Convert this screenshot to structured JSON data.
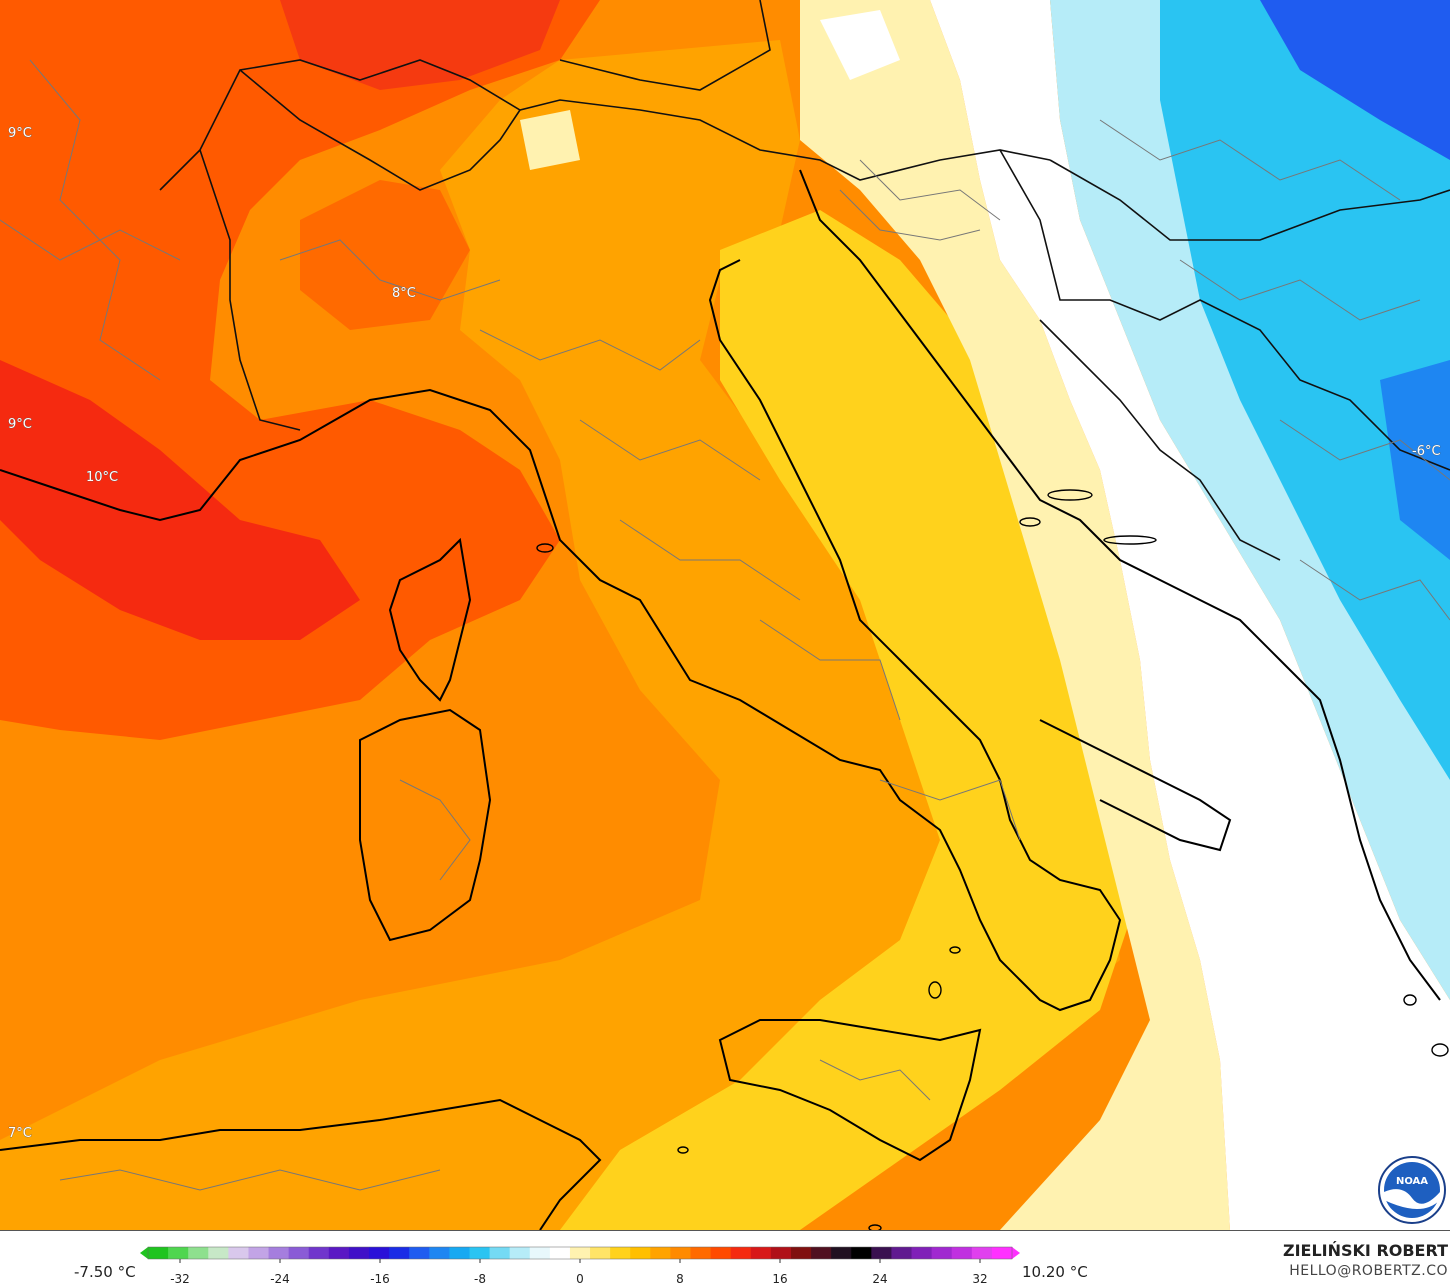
{
  "map": {
    "labels": [
      {
        "id": "label-nw",
        "text": "9°C"
      },
      {
        "id": "label-alps",
        "text": "8°C"
      },
      {
        "id": "label-w",
        "text": "9°C"
      },
      {
        "id": "label-provence",
        "text": "10°C"
      },
      {
        "id": "label-sw",
        "text": "7°C"
      },
      {
        "id": "label-e",
        "text": "-6°C"
      }
    ],
    "logo": {
      "icon": "noaa-logo-icon",
      "text": "NOAA"
    }
  },
  "legend": {
    "min_label": "-7.50 °C",
    "max_label": "10.20 °C",
    "ticks": [
      "-32",
      "-24",
      "-16",
      "-8",
      "0",
      "8",
      "16",
      "24",
      "32"
    ],
    "colors": [
      "#1fc41f",
      "#4fd64f",
      "#8ee08e",
      "#c7e8c7",
      "#d9c8ec",
      "#c2a4e6",
      "#a57ede",
      "#8a5bd6",
      "#7036cc",
      "#5a18c4",
      "#4010c8",
      "#2a10d8",
      "#1a2ce6",
      "#1f5cf0",
      "#1e86f2",
      "#17a9f2",
      "#2ac4f2",
      "#74daf4",
      "#b6ecf8",
      "#e8f8fc",
      "#ffffff",
      "#fff2b0",
      "#ffe467",
      "#ffd21c",
      "#ffbf00",
      "#ffa300",
      "#ff8a00",
      "#ff6a00",
      "#ff4a00",
      "#f52a10",
      "#d81818",
      "#b01018",
      "#801010",
      "#501020",
      "#201020",
      "#000000",
      "#3a1050",
      "#601a90",
      "#8020b8",
      "#a028d0",
      "#c030e0",
      "#e040ee",
      "#ff30ff"
    ]
  },
  "footer": {
    "author": "ZIELIŃSKI ROBERT",
    "email": "HELLO@ROBERTZ.CO"
  }
}
